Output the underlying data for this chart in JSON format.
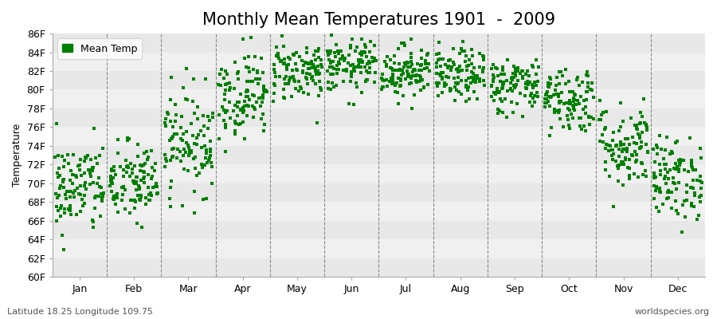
{
  "title": "Monthly Mean Temperatures 1901  -  2009",
  "ylabel": "Temperature",
  "month_labels": [
    "Jan",
    "Feb",
    "Mar",
    "Apr",
    "May",
    "Jun",
    "Jul",
    "Aug",
    "Sep",
    "Oct",
    "Nov",
    "Dec"
  ],
  "ylim": [
    60,
    86
  ],
  "yticks": [
    60,
    62,
    64,
    66,
    68,
    70,
    72,
    74,
    76,
    78,
    80,
    82,
    84,
    86
  ],
  "ytick_labels": [
    "60F",
    "62F",
    "64F",
    "66F",
    "68F",
    "70F",
    "72F",
    "74F",
    "76F",
    "78F",
    "80F",
    "82F",
    "84F",
    "86F"
  ],
  "dot_color": "#008000",
  "fig_bg_color": "#ffffff",
  "plot_bg_color": "#f0f0f0",
  "band_colors": [
    "#e8e8e8",
    "#f0f0f0"
  ],
  "legend_label": "Mean Temp",
  "footnote_left": "Latitude 18.25 Longitude 109.75",
  "footnote_right": "worldspecies.org",
  "title_fontsize": 15,
  "label_fontsize": 9,
  "tick_fontsize": 9,
  "footnote_fontsize": 8,
  "monthly_means": [
    69.5,
    70.0,
    74.5,
    79.5,
    82.0,
    82.5,
    82.0,
    81.5,
    80.5,
    79.0,
    74.0,
    70.5
  ],
  "monthly_stds": [
    2.5,
    2.2,
    2.8,
    2.3,
    1.6,
    1.4,
    1.4,
    1.4,
    1.5,
    1.8,
    2.3,
    2.2
  ],
  "n_years": 109,
  "seed": 42
}
